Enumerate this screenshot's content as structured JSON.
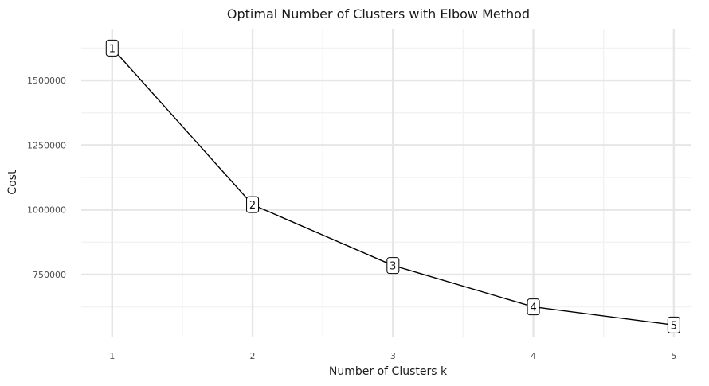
{
  "chart_data": {
    "type": "line",
    "title": "Optimal Number of Clusters with Elbow Method",
    "xlabel": "Number of Clusters k",
    "ylabel": "Cost",
    "x": [
      1,
      2,
      3,
      4,
      5
    ],
    "series": [
      {
        "values": [
          1625000,
          1020000,
          785000,
          625000,
          555000
        ]
      }
    ],
    "point_labels": [
      "1",
      "2",
      "3",
      "4",
      "5"
    ],
    "x_ticks": [
      1,
      2,
      3,
      4,
      5
    ],
    "x_tick_labels": [
      "1",
      "2",
      "3",
      "4",
      "5"
    ],
    "y_ticks": [
      750000,
      1000000,
      1250000,
      1500000
    ],
    "y_tick_labels": [
      "750000",
      "1000000",
      "1250000",
      "1500000"
    ],
    "xlim": [
      0.78,
      5.12
    ],
    "ylim": [
      510000,
      1700000
    ],
    "grid": true,
    "legend": "none",
    "colors": {
      "line": "#000000",
      "major_grid": "#e6e6e6",
      "minor_grid": "#f2f2f2",
      "label_fill": "#ffffff",
      "label_border": "#000000"
    }
  }
}
